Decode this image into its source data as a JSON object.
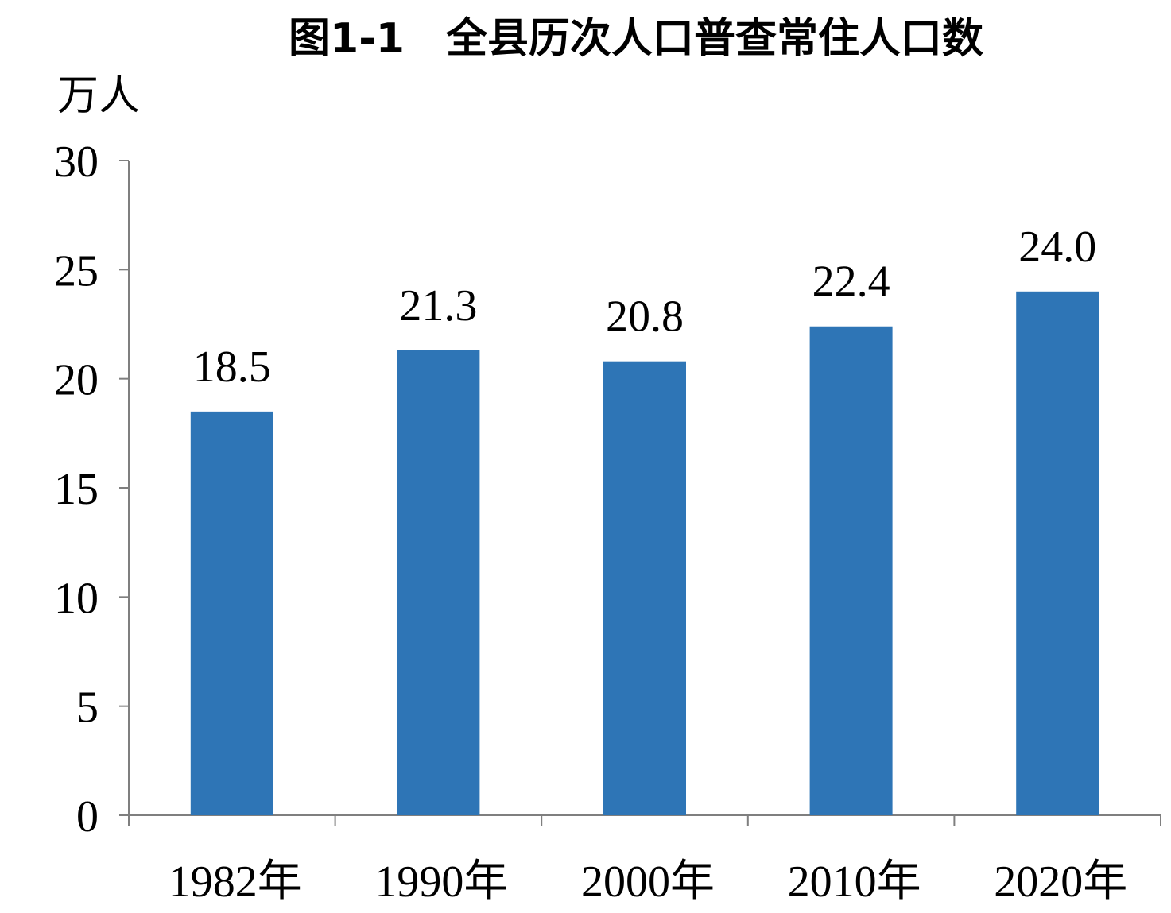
{
  "chart_data": {
    "type": "bar",
    "title": "图1-1　全县历次人口普查常住人口数",
    "ylabel": "万人",
    "xlabel": "",
    "categories": [
      "1982年",
      "1990年",
      "2000年",
      "2010年",
      "2020年"
    ],
    "values": [
      18.5,
      21.3,
      20.8,
      22.4,
      24.0
    ],
    "data_labels": [
      "18.5",
      "21.3",
      "20.8",
      "22.4",
      "24.0"
    ],
    "ylim": [
      0,
      30
    ],
    "yticks": [
      0,
      5,
      10,
      15,
      20,
      25,
      30
    ],
    "grid": false,
    "legend": "none",
    "bar_color": "#2E75B6"
  }
}
